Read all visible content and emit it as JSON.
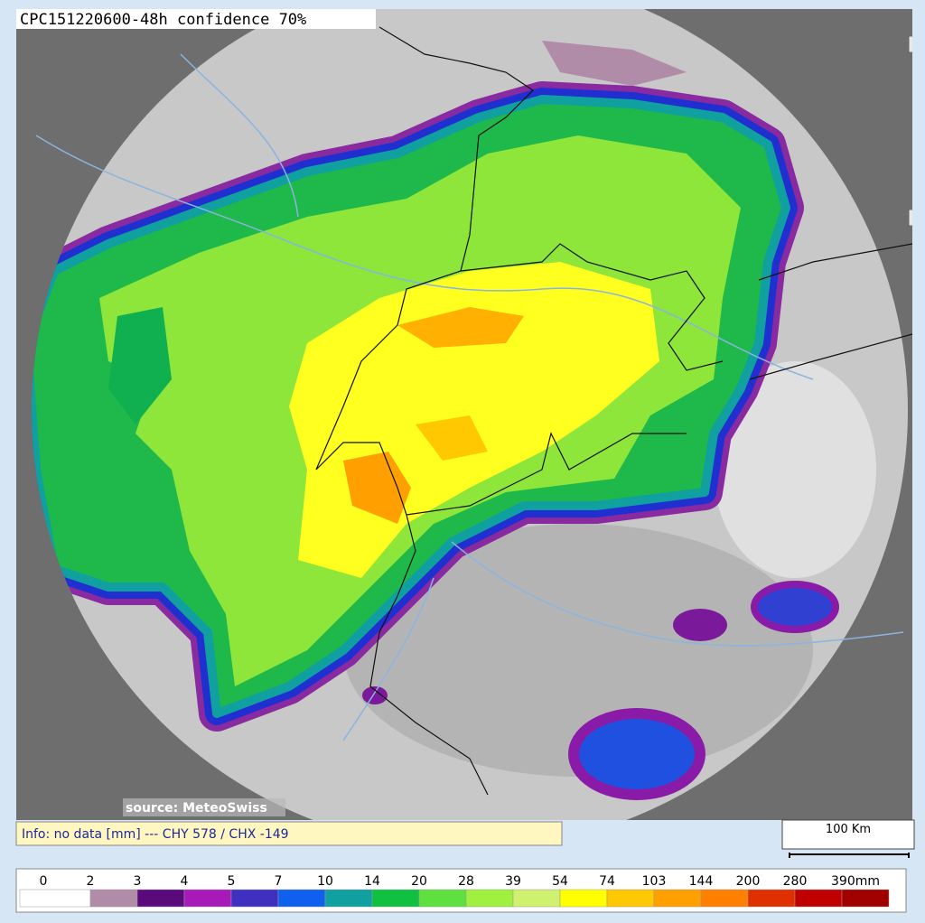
{
  "header": {
    "title": "CPC151220600-48h confidence 70%"
  },
  "map": {
    "source": "source: MeteoSwiss",
    "info": "Info: no data [mm] --- CHY 578 / CHX -149",
    "scale": "100 Km"
  },
  "legend": {
    "labels": [
      "0",
      "2",
      "3",
      "4",
      "5",
      "7",
      "10",
      "14",
      "20",
      "28",
      "39",
      "54",
      "74",
      "103",
      "144",
      "200",
      "280",
      "390mm"
    ],
    "colors": [
      "#ffffff",
      "#b08ca8",
      "#5a0a7a",
      "#a81ab8",
      "#4030c0",
      "#1060f0",
      "#10a0a0",
      "#10c040",
      "#60e040",
      "#a0f040",
      "#d0f070",
      "#ffff00",
      "#ffc800",
      "#ffa000",
      "#ff8000",
      "#e03000",
      "#c00000",
      "#a00000"
    ]
  }
}
